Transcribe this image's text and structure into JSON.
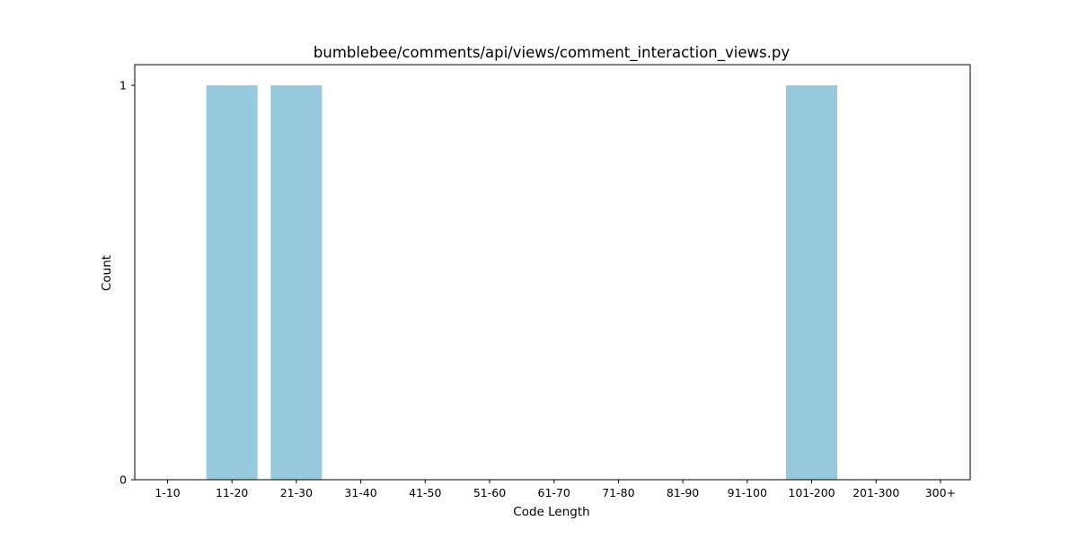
{
  "chart_data": {
    "type": "bar",
    "title": "bumblebee/comments/api/views/comment_interaction_views.py",
    "xlabel": "Code Length",
    "ylabel": "Count",
    "categories": [
      "1-10",
      "11-20",
      "21-30",
      "31-40",
      "41-50",
      "51-60",
      "61-70",
      "71-80",
      "81-90",
      "91-100",
      "101-200",
      "201-300",
      "300+"
    ],
    "values": [
      0,
      1,
      1,
      0,
      0,
      0,
      0,
      0,
      0,
      0,
      1,
      0,
      0
    ],
    "ylim": [
      0,
      1
    ],
    "yticks": [
      0,
      1
    ],
    "bar_color": "#96c9dc",
    "grid": false,
    "legend": "none"
  }
}
